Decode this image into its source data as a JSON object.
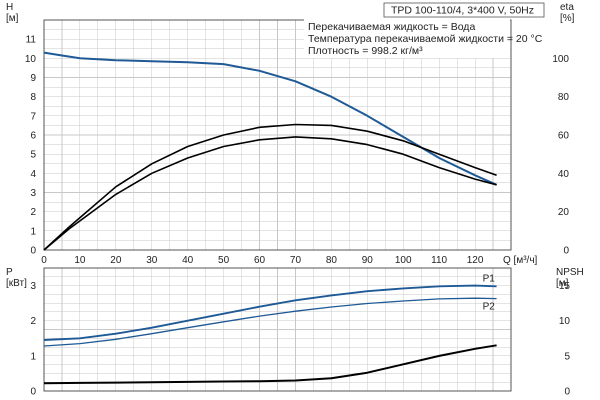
{
  "header": {
    "title": "TPD 100-110/4, 3*400 V, 50Hz",
    "info": [
      "Перекачиваемая жидкость = Вода",
      "Температура перекачиваемой жидкости = 20 °C",
      "Плотность = 998.2 кг/м³"
    ]
  },
  "chart_data": [
    {
      "type": "line",
      "name": "top-panel",
      "xlabel": "Q [м³/ч]",
      "ylabel_left": "H [м]",
      "ylabel_right": "eta [%]",
      "xlim": [
        0,
        130
      ],
      "xticks": [
        0,
        10,
        20,
        30,
        40,
        50,
        60,
        70,
        80,
        90,
        100,
        110,
        120
      ],
      "ylim_left": [
        0,
        12
      ],
      "yticks_left": [
        0,
        1,
        2,
        3,
        4,
        5,
        6,
        7,
        8,
        9,
        10,
        11
      ],
      "yticks_right": [
        0,
        20,
        40,
        60,
        80,
        100
      ],
      "grid": true,
      "series": [
        {
          "name": "",
          "axis": "H",
          "color": "#1f5a96",
          "x": [
            0,
            5,
            10,
            20,
            30,
            40,
            50,
            60,
            70,
            80,
            90,
            100,
            110,
            120,
            126
          ],
          "y": [
            10.3,
            10.15,
            10.0,
            9.9,
            9.85,
            9.8,
            9.7,
            9.35,
            8.8,
            8.0,
            7.0,
            5.9,
            4.8,
            3.9,
            3.4
          ]
        },
        {
          "name": "",
          "axis": "eta",
          "color": "#000000",
          "x": [
            0,
            7,
            20,
            30,
            40,
            50,
            60,
            70,
            80,
            90,
            100,
            110,
            120,
            126
          ],
          "y": [
            0,
            12,
            33,
            45,
            54,
            60,
            64,
            65.5,
            65,
            62,
            57,
            50,
            43,
            39
          ]
        },
        {
          "name": "",
          "axis": "eta",
          "color": "#000000",
          "x": [
            0,
            7,
            20,
            30,
            40,
            50,
            60,
            70,
            80,
            90,
            100,
            110,
            120,
            126
          ],
          "y": [
            0,
            11,
            29,
            40,
            48,
            54,
            57.5,
            59,
            58,
            55,
            50,
            43,
            37,
            34
          ]
        }
      ]
    },
    {
      "type": "line",
      "name": "bottom-panel",
      "ylabel_left": "P [кВт]",
      "ylabel_right": "NPSH [м]",
      "xlim": [
        0,
        130
      ],
      "ylim_left": [
        0,
        3.5
      ],
      "yticks_left": [
        0,
        1,
        2,
        3
      ],
      "ylim_right": [
        0,
        17.5
      ],
      "yticks_right": [
        0,
        5,
        10,
        15
      ],
      "grid": true,
      "series": [
        {
          "name": "P1",
          "axis": "P",
          "color": "#1f5a96",
          "x": [
            0,
            10,
            20,
            30,
            40,
            50,
            60,
            70,
            80,
            90,
            100,
            110,
            120,
            126
          ],
          "y": [
            1.45,
            1.5,
            1.63,
            1.8,
            2.0,
            2.2,
            2.4,
            2.58,
            2.72,
            2.84,
            2.92,
            2.98,
            3.0,
            2.98
          ]
        },
        {
          "name": "P2",
          "axis": "P",
          "color": "#1f5a96",
          "x": [
            0,
            10,
            20,
            30,
            40,
            50,
            60,
            70,
            80,
            90,
            100,
            110,
            120,
            126
          ],
          "y": [
            1.28,
            1.35,
            1.47,
            1.63,
            1.8,
            1.97,
            2.13,
            2.27,
            2.39,
            2.49,
            2.56,
            2.62,
            2.64,
            2.63
          ]
        },
        {
          "name": "",
          "axis": "NPSH",
          "color": "#000000",
          "x": [
            0,
            10,
            20,
            30,
            40,
            50,
            60,
            70,
            80,
            90,
            100,
            110,
            120,
            126
          ],
          "y": [
            1.1,
            1.15,
            1.2,
            1.25,
            1.3,
            1.35,
            1.4,
            1.5,
            1.8,
            2.6,
            3.8,
            5.0,
            6.0,
            6.5
          ]
        }
      ]
    }
  ]
}
